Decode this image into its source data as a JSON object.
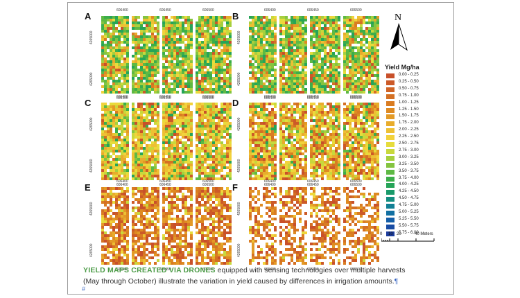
{
  "panels": [
    {
      "label": "A",
      "ticks_x": [
        "606400",
        "606450",
        "606500"
      ],
      "ticks_y": [
        "4265000",
        "4265000"
      ],
      "green": 0.52,
      "yellow": 0.25,
      "orange": 0.13,
      "gaps": 0.1
    },
    {
      "label": "B",
      "ticks_x": [
        "606400",
        "606450",
        "606500"
      ],
      "ticks_y": [
        "4265000",
        "4265000"
      ],
      "green": 0.5,
      "yellow": 0.25,
      "orange": 0.15,
      "gaps": 0.1
    },
    {
      "label": "C",
      "ticks_x": [
        "606400",
        "606450",
        "606500"
      ],
      "ticks_y": [
        "4265000",
        "4265000"
      ],
      "green": 0.18,
      "yellow": 0.55,
      "orange": 0.17,
      "gaps": 0.1
    },
    {
      "label": "D",
      "ticks_x": [
        "606400",
        "606450",
        "606500"
      ],
      "ticks_y": [
        "4265000",
        "4265000"
      ],
      "green": 0.08,
      "yellow": 0.45,
      "orange": 0.32,
      "gaps": 0.15
    },
    {
      "label": "E",
      "ticks_x": [
        "606400",
        "606450",
        "606500"
      ],
      "ticks_y": [
        "4265000",
        "4265000"
      ],
      "green": 0.0,
      "yellow": 0.15,
      "orange": 0.6,
      "gaps": 0.25
    },
    {
      "label": "F",
      "ticks_x": [
        "606400",
        "606450",
        "606500"
      ],
      "ticks_y": [
        "4265000",
        "4265000"
      ],
      "green": 0.0,
      "yellow": 0.08,
      "orange": 0.47,
      "gaps": 0.45
    }
  ],
  "north_label": "N",
  "legend": {
    "title": "Yield Mg/ha",
    "classes": [
      {
        "range": "0.00 - 0.25",
        "color": "#c8502a"
      },
      {
        "range": "0.25 - 0.50",
        "color": "#cc5a28"
      },
      {
        "range": "0.50 - 0.75",
        "color": "#d06426"
      },
      {
        "range": "0.75 - 1.00",
        "color": "#d47024"
      },
      {
        "range": "1.00 - 1.25",
        "color": "#d97c22"
      },
      {
        "range": "1.25 - 1.50",
        "color": "#de8a22"
      },
      {
        "range": "1.50 - 1.75",
        "color": "#e39a26"
      },
      {
        "range": "1.75 - 2.00",
        "color": "#e8ac2c"
      },
      {
        "range": "2.00 - 2.25",
        "color": "#edc034"
      },
      {
        "range": "2.25 - 2.50",
        "color": "#f2d23c"
      },
      {
        "range": "2.50 - 2.75",
        "color": "#e6dc3c"
      },
      {
        "range": "2.75 - 3.00",
        "color": "#c8d83c"
      },
      {
        "range": "3.00 - 3.25",
        "color": "#a6cf3e"
      },
      {
        "range": "3.25 - 3.50",
        "color": "#84c440"
      },
      {
        "range": "3.50 - 3.75",
        "color": "#5eb944"
      },
      {
        "range": "3.75 - 4.00",
        "color": "#3cae4a"
      },
      {
        "range": "4.00 - 4.25",
        "color": "#26a458"
      },
      {
        "range": "4.25 - 4.50",
        "color": "#1a9a6a"
      },
      {
        "range": "4.50 - 4.75",
        "color": "#148e80"
      },
      {
        "range": "4.75 - 5.00",
        "color": "#128094"
      },
      {
        "range": "5.00 - 5.25",
        "color": "#1270a2"
      },
      {
        "range": "5.25 - 5.50",
        "color": "#145ea8"
      },
      {
        "range": "5.50 - 5.75",
        "color": "#184ca4"
      },
      {
        "range": "5.75 - 6.00",
        "color": "#1c3c9c"
      }
    ]
  },
  "scale": {
    "labels": [
      "0",
      "10",
      "20",
      "40 Meters"
    ]
  },
  "caption": {
    "highlight": "YIELD MAPS CREATED VIA DRONES",
    "line1_rest": " equipped with sensing technologies over multiple harvests",
    "line2": "(May through October) illustrate the variation in yield caused by differences in irrigation amounts.",
    "pilcrow": "¶"
  },
  "footmark": "#"
}
